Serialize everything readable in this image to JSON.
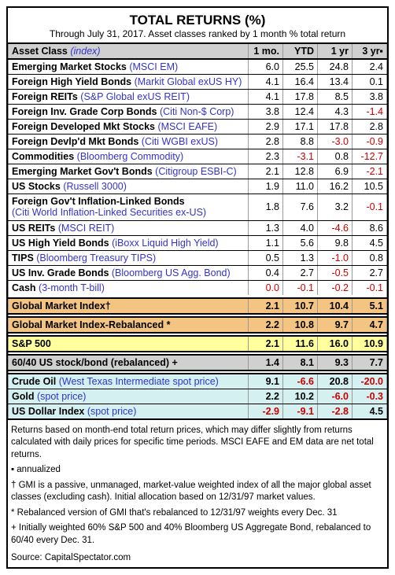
{
  "title": "TOTAL RETURNS (%)",
  "subtitle": "Through July 31, 2017. Asset classes ranked by 1 month % total return",
  "headers": {
    "asset_class": "Asset Class",
    "index_hdr": "(index)",
    "mo1": "1 mo.",
    "ytd": "YTD",
    "yr1": "1 yr",
    "yr3": "3 yr▪"
  },
  "rows": [
    {
      "asset": "Emerging Market Stocks",
      "index": "(MSCI EM)",
      "v": [
        "6.0",
        "25.5",
        "24.8",
        "2.4"
      ],
      "underline": true
    },
    {
      "asset": "Foreign High Yield Bonds",
      "index": "(Markit Global exUS HY)",
      "v": [
        "4.1",
        "16.4",
        "13.4",
        "0.1"
      ],
      "underline": true
    },
    {
      "asset": "Foreign REITs",
      "index": "(S&P Global exUS REIT)",
      "v": [
        "4.1",
        "17.8",
        "8.5",
        "3.8"
      ],
      "underline": true
    },
    {
      "asset": "Foreign Inv. Grade Corp Bonds",
      "index": "(Citi Non-$ Corp)",
      "v": [
        "3.8",
        "12.4",
        "4.3",
        "-1.4"
      ],
      "underline": true
    },
    {
      "asset": "Foreign Developed Mkt Stocks",
      "index": "(MSCI EAFE)",
      "v": [
        "2.9",
        "17.1",
        "17.8",
        "2.8"
      ],
      "underline": true
    },
    {
      "asset": "Foreign Devlp'd Mkt Bonds",
      "index": "(Citi WGBI exUS)",
      "v": [
        "2.8",
        "8.8",
        "-3.0",
        "-0.9"
      ],
      "underline": true
    },
    {
      "asset": "Commodities",
      "index": "(Bloomberg Commodity)",
      "v": [
        "2.3",
        "-3.1",
        "0.8",
        "-12.7"
      ],
      "underline": true
    },
    {
      "asset": "Emerging Market Gov't Bonds",
      "index": "(Citigroup ESBI-C)",
      "v": [
        "2.1",
        "12.8",
        "6.9",
        "-2.1"
      ],
      "underline": true
    },
    {
      "asset": "US Stocks",
      "index": "(Russell 3000)",
      "v": [
        "1.9",
        "11.0",
        "16.2",
        "10.5"
      ],
      "underline": true
    },
    {
      "asset": "Foreign Gov't Inflation-Linked Bonds",
      "index": "(Citi World Inflation-Linked Securities ex-US)",
      "v": [
        "1.8",
        "7.6",
        "3.2",
        "-0.1"
      ],
      "underline": true,
      "twoline": true
    },
    {
      "asset": "US REITs",
      "index": "(MSCI REIT)",
      "v": [
        "1.3",
        "4.0",
        "-4.6",
        "8.6"
      ],
      "underline": true
    },
    {
      "asset": "US High Yield Bonds",
      "index": "(iBoxx Liquid High Yield)",
      "v": [
        "1.1",
        "5.6",
        "9.8",
        "4.5"
      ],
      "underline": true
    },
    {
      "asset": "TIPS",
      "index": "(Bloomberg Treasury TIPS)",
      "v": [
        "0.5",
        "1.3",
        "-1.0",
        "0.8"
      ],
      "underline": true
    },
    {
      "asset": "US Inv. Grade Bonds",
      "index": "(Bloomberg US Agg. Bond)",
      "v": [
        "0.4",
        "2.7",
        "-0.5",
        "2.7"
      ],
      "underline": true
    },
    {
      "asset": "Cash",
      "index": "(3-month T-bill)",
      "v": [
        "0.0",
        "-0.1",
        "-0.2",
        "-0.1"
      ],
      "zerofirst": true
    }
  ],
  "special": [
    {
      "cls": "gmi",
      "asset": "Global Market Index†",
      "index": "",
      "v": [
        "2.1",
        "10.7",
        "10.4",
        "5.1"
      ],
      "thick_top": true,
      "thick_bottom": true
    },
    {
      "cls": "gmi",
      "asset": "Global Market Index-Rebalanced *",
      "index": "",
      "v": [
        "2.2",
        "10.8",
        "9.7",
        "4.7"
      ],
      "thick_top": true,
      "thick_bottom": true
    },
    {
      "cls": "sp500",
      "asset": "S&P 500",
      "index": "",
      "v": [
        "2.1",
        "11.6",
        "16.0",
        "10.9"
      ],
      "thick_top": true,
      "thick_bottom": true
    },
    {
      "cls": "sixty",
      "asset": "60/40 US stock/bond (rebalanced) +",
      "index": "",
      "v": [
        "1.4",
        "8.1",
        "9.3",
        "7.7"
      ],
      "thick_top": true,
      "thick_bottom": true
    },
    {
      "cls": "commodity",
      "asset": "Crude Oil",
      "index": "(West Texas Intermediate spot price)",
      "v": [
        "9.1",
        "-6.6",
        "20.8",
        "-20.0"
      ],
      "thick_top": true,
      "underline": true
    },
    {
      "cls": "commodity",
      "asset": "Gold",
      "index": "(spot price)",
      "v": [
        "2.2",
        "10.2",
        "-6.0",
        "-0.3"
      ],
      "underline": true
    },
    {
      "cls": "commodity",
      "asset": "US Dollar Index",
      "index": "(spot price)",
      "v": [
        "-2.9",
        "-9.1",
        "-2.8",
        "4.5"
      ]
    }
  ],
  "footnotes": [
    "Returns based on month-end total return prices, which may differ slightly from returns calculated with daily prices for specific time periods. MSCI EAFE and EM data are net total returns.",
    "▪ annualized",
    "† GMI is a passive, unmanaged, market-value weighted index of all the major global asset classes (excluding cash). Initial allocation based on 12/31/97 market values.",
    "* Rebalanced version of GMI that's rebalanced to 12/31/97 weights every Dec. 31",
    "+ Initially weighted 60% S&P 500 and 40% Bloomberg US Aggregate Bond, rebalanced to 60/40 every Dec. 31."
  ],
  "source": "Source: CapitalSpectator.com"
}
